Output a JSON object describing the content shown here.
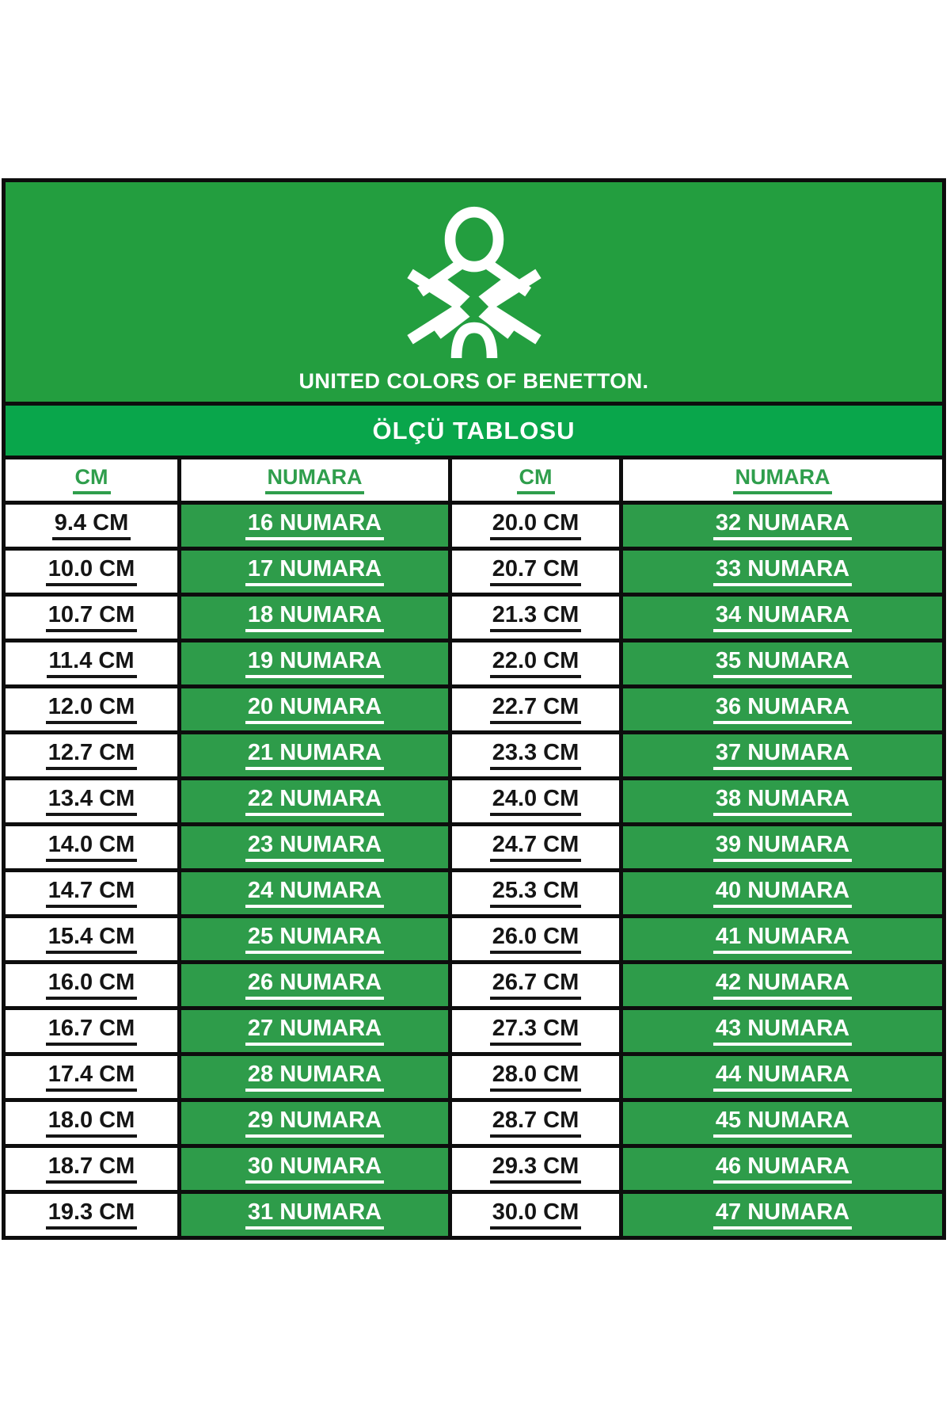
{
  "brand": {
    "wordmark": "UNITED COLORS OF BENETTON.",
    "logo_icon": "benetton-knot"
  },
  "title": "ÖLÇÜ TABLOSU",
  "table": {
    "headers": [
      "CM",
      "NUMARA",
      "CM",
      "NUMARA"
    ],
    "rows": [
      [
        "9.4 CM",
        "16 NUMARA",
        "20.0 CM",
        "32 NUMARA"
      ],
      [
        "10.0 CM",
        "17 NUMARA",
        "20.7 CM",
        "33 NUMARA"
      ],
      [
        "10.7 CM",
        "18 NUMARA",
        "21.3 CM",
        "34 NUMARA"
      ],
      [
        "11.4 CM",
        "19 NUMARA",
        "22.0 CM",
        "35 NUMARA"
      ],
      [
        "12.0 CM",
        "20 NUMARA",
        "22.7 CM",
        "36 NUMARA"
      ],
      [
        "12.7 CM",
        "21 NUMARA",
        "23.3 CM",
        "37 NUMARA"
      ],
      [
        "13.4 CM",
        "22 NUMARA",
        "24.0 CM",
        "38 NUMARA"
      ],
      [
        "14.0 CM",
        "23 NUMARA",
        "24.7 CM",
        "39 NUMARA"
      ],
      [
        "14.7 CM",
        "24 NUMARA",
        "25.3 CM",
        "40 NUMARA"
      ],
      [
        "15.4 CM",
        "25 NUMARA",
        "26.0 CM",
        "41 NUMARA"
      ],
      [
        "16.0 CM",
        "26 NUMARA",
        "26.7 CM",
        "42 NUMARA"
      ],
      [
        "16.7 CM",
        "27 NUMARA",
        "27.3 CM",
        "43 NUMARA"
      ],
      [
        "17.4 CM",
        "28 NUMARA",
        "28.0 CM",
        "44 NUMARA"
      ],
      [
        "18.0 CM",
        "29 NUMARA",
        "28.7 CM",
        "45 NUMARA"
      ],
      [
        "18.7 CM",
        "30 NUMARA",
        "29.3 CM",
        "46 NUMARA"
      ],
      [
        "19.3 CM",
        "31 NUMARA",
        "30.0 CM",
        "47 NUMARA"
      ]
    ]
  },
  "colors": {
    "logo-band": "#239e3f",
    "title-band": "#09a64b",
    "cell-green": "#2e9c4a",
    "head-green": "#2f9e4c",
    "ink": "#151515",
    "line": "#0d0d0d"
  }
}
